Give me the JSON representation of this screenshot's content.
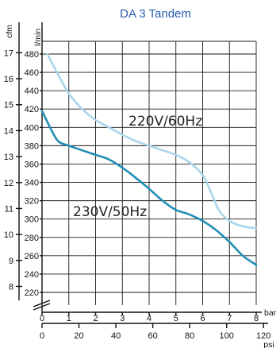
{
  "chart_data": {
    "type": "line",
    "title": "DA 3 Tandem",
    "y_left_outer": {
      "label": "cfm",
      "ticks": [
        "8",
        "9",
        "10",
        "11",
        "12",
        "13",
        "14",
        "15",
        "16",
        "17"
      ],
      "range": [
        8,
        17
      ]
    },
    "y_left_inner": {
      "label": "l/min",
      "ticks": [
        "220",
        "240",
        "260",
        "280",
        "300",
        "320",
        "340",
        "360",
        "380",
        "400",
        "420",
        "440",
        "460",
        "480"
      ],
      "range": [
        220,
        480
      ]
    },
    "x_top": {
      "label": "bar",
      "ticks": [
        "0",
        "1",
        "2",
        "3",
        "4",
        "5",
        "6",
        "7",
        "8"
      ],
      "range": [
        0,
        8
      ]
    },
    "x_bottom": {
      "label": "psi",
      "ticks": [
        "0",
        "20",
        "40",
        "60",
        "80",
        "100",
        "120"
      ]
    },
    "grid": true,
    "x_unit": "bar",
    "y_unit": "l/min",
    "series": [
      {
        "name": "220V/60Hz",
        "color": "#a9d6ea",
        "x": [
          0.2,
          0.5,
          1.0,
          1.5,
          2.0,
          2.5,
          3.0,
          3.5,
          4.0,
          4.5,
          5.0,
          5.5,
          6.0,
          6.3,
          6.6,
          7.0,
          7.5,
          8.0
        ],
        "values": [
          480,
          463,
          437,
          420,
          408,
          400,
          392,
          385,
          380,
          375,
          370,
          362,
          348,
          330,
          310,
          298,
          292,
          290
        ]
      },
      {
        "name": "230V/50Hz",
        "color": "#1f8fb4",
        "x": [
          0.0,
          0.3,
          0.6,
          1.0,
          1.5,
          2.0,
          2.5,
          3.0,
          3.5,
          4.0,
          4.5,
          5.0,
          5.5,
          6.0,
          6.5,
          7.0,
          7.5,
          8.0
        ],
        "values": [
          418,
          400,
          385,
          380,
          375,
          370,
          365,
          356,
          345,
          333,
          320,
          310,
          305,
          298,
          288,
          275,
          260,
          250
        ]
      }
    ]
  }
}
